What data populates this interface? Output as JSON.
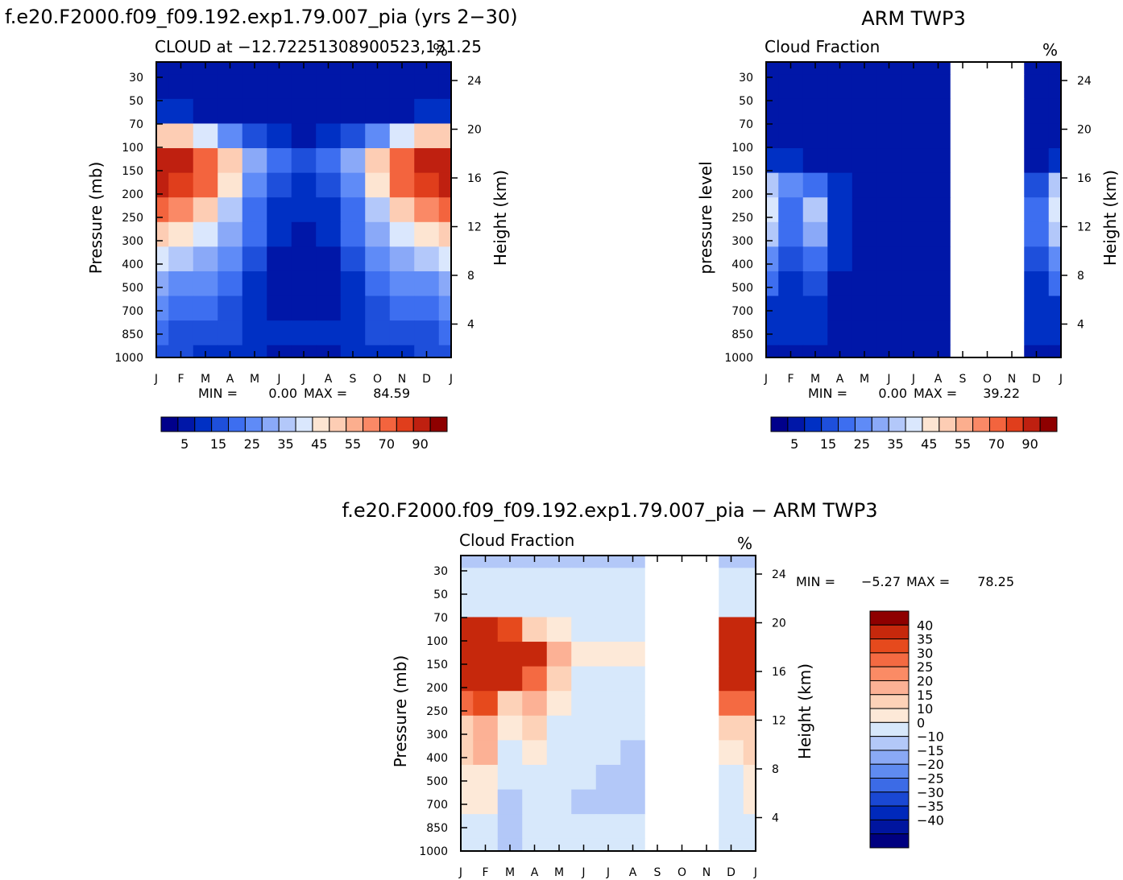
{
  "figure_titles": {
    "model": "f.e20.F2000.f09_f09.192.exp1.79.007_pia (yrs 2−30)",
    "obs": "ARM TWP3",
    "diff": "f.e20.F2000.f09_f09.192.exp1.79.007_pia − ARM TWP3"
  },
  "colors": {
    "cloud_scale": [
      "#00008b",
      "#0017a8",
      "#0030c4",
      "#1e4fdb",
      "#3d6ef0",
      "#5f8bf7",
      "#8aa9f8",
      "#b3c8fa",
      "#dae7fd",
      "#fde5d2",
      "#fdcdb4",
      "#fcae8e",
      "#fa8966",
      "#f3643e",
      "#e03e1c",
      "#bf2010",
      "#8e0000"
    ],
    "diff_scale": [
      "#000080",
      "#00159f",
      "#0029bb",
      "#1a48d3",
      "#3c6be6",
      "#5f8bf0",
      "#8aa9f5",
      "#b3c8f8",
      "#d7e8fb",
      "#fde9d8",
      "#fdd2b8",
      "#fcb195",
      "#fb8b65",
      "#f46a42",
      "#e64a1d",
      "#c6280c",
      "#8e0000"
    ],
    "missing": "#ffffff"
  },
  "chart_data": [
    {
      "id": "model",
      "type": "heatmap",
      "title": "CLOUD at −12.7225130890052​3,131.25",
      "subtitle_left": "CLOUD at −12.72251308900523,131.25",
      "unit": "%",
      "xlabel": "",
      "ylabel": "Pressure (mb)",
      "ylabel_right": "Height (km)",
      "x_ticklabels": [
        "J",
        "F",
        "M",
        "A",
        "M",
        "J",
        "J",
        "A",
        "S",
        "O",
        "N",
        "D",
        "J"
      ],
      "y_ticklabels": [
        "30",
        "50",
        "70",
        "100",
        "150",
        "200",
        "250",
        "300",
        "400",
        "500",
        "700",
        "850",
        "1000"
      ],
      "y_ticks_right": [
        "24",
        "20",
        "16",
        "12",
        "8",
        "4"
      ],
      "min_label": "MIN =",
      "min_value": "0.00",
      "max_label": "MAX =",
      "max_value": "84.59",
      "colorbar_labels": [
        "5",
        "15",
        "25",
        "35",
        "45",
        "55",
        "70",
        "90"
      ],
      "levels": [
        0,
        5,
        10,
        15,
        20,
        25,
        30,
        35,
        40,
        45,
        50,
        55,
        60,
        70,
        80,
        90
      ],
      "pressure_levels": [
        30,
        50,
        70,
        100,
        150,
        200,
        250,
        300,
        400,
        500,
        700,
        850,
        1000
      ],
      "months": [
        "J",
        "F",
        "M",
        "A",
        "M",
        "J",
        "J",
        "A",
        "S",
        "O",
        "N",
        "D",
        "J"
      ],
      "values": [
        [
          0,
          0,
          0,
          0,
          0,
          0,
          0,
          0,
          0,
          0,
          0,
          0,
          0
        ],
        [
          0,
          0,
          0,
          0,
          0,
          0,
          0,
          0,
          0,
          0,
          0,
          0,
          0
        ],
        [
          5,
          5,
          4,
          3,
          2,
          1,
          1,
          1,
          2,
          3,
          4,
          5,
          5
        ],
        [
          45,
          45,
          35,
          20,
          10,
          5,
          3,
          5,
          10,
          20,
          35,
          45,
          45
        ],
        [
          84,
          82,
          65,
          45,
          25,
          15,
          10,
          15,
          25,
          45,
          65,
          82,
          84
        ],
        [
          80,
          78,
          60,
          40,
          22,
          12,
          8,
          12,
          22,
          40,
          60,
          78,
          80
        ],
        [
          60,
          58,
          45,
          30,
          18,
          8,
          5,
          8,
          18,
          30,
          45,
          58,
          60
        ],
        [
          45,
          42,
          35,
          25,
          15,
          5,
          3,
          5,
          15,
          25,
          35,
          42,
          45
        ],
        [
          35,
          32,
          28,
          20,
          10,
          2,
          1,
          2,
          10,
          20,
          28,
          32,
          35
        ],
        [
          25,
          22,
          20,
          15,
          8,
          1,
          0,
          1,
          8,
          15,
          20,
          22,
          25
        ],
        [
          20,
          18,
          15,
          10,
          5,
          1,
          0,
          1,
          5,
          10,
          15,
          18,
          20
        ],
        [
          15,
          14,
          12,
          10,
          8,
          6,
          5,
          6,
          8,
          10,
          12,
          14,
          15
        ],
        [
          10,
          10,
          8,
          6,
          5,
          4,
          3,
          4,
          5,
          6,
          8,
          10,
          10
        ]
      ],
      "missing_months": []
    },
    {
      "id": "obs",
      "type": "heatmap",
      "title": "Cloud Fraction",
      "unit": "%",
      "xlabel": "",
      "ylabel": "pressure level",
      "ylabel_right": "Height (km)",
      "x_ticklabels": [
        "J",
        "F",
        "M",
        "A",
        "M",
        "J",
        "J",
        "A",
        "S",
        "O",
        "N",
        "D",
        "J"
      ],
      "y_ticklabels": [
        "30",
        "50",
        "70",
        "100",
        "150",
        "200",
        "250",
        "300",
        "400",
        "500",
        "700",
        "850",
        "1000"
      ],
      "y_ticks_right": [
        "24",
        "20",
        "16",
        "12",
        "8",
        "4"
      ],
      "min_label": "MIN =",
      "min_value": "0.00",
      "max_label": "MAX =",
      "max_value": "39.22",
      "colorbar_labels": [
        "5",
        "15",
        "25",
        "35",
        "45",
        "55",
        "70",
        "90"
      ],
      "levels": [
        0,
        5,
        10,
        15,
        20,
        25,
        30,
        35,
        40,
        45,
        50,
        55,
        60,
        70,
        80,
        90
      ],
      "pressure_levels": [
        30,
        50,
        70,
        100,
        150,
        200,
        250,
        300,
        400,
        500,
        700,
        850,
        1000
      ],
      "months": [
        "J",
        "F",
        "M",
        "A",
        "M",
        "J",
        "J",
        "A",
        "S",
        "O",
        "N",
        "D",
        "J"
      ],
      "values": [
        [
          0,
          0,
          0,
          0,
          0,
          0,
          0,
          0,
          0,
          0,
          0,
          0,
          0
        ],
        [
          0,
          0,
          0,
          0,
          0,
          0,
          0,
          0,
          0,
          0,
          0,
          0,
          0
        ],
        [
          0,
          0,
          0,
          0,
          0,
          0,
          0,
          0,
          0,
          0,
          0,
          0,
          0
        ],
        [
          0,
          0,
          0,
          0,
          0,
          0,
          0,
          0,
          0,
          0,
          0,
          0,
          0
        ],
        [
          8,
          8,
          4,
          2,
          0,
          0,
          0,
          0,
          0,
          0,
          0,
          2,
          8
        ],
        [
          30,
          20,
          15,
          5,
          0,
          0,
          0,
          0,
          0,
          0,
          0,
          10,
          30
        ],
        [
          39,
          18,
          30,
          8,
          0,
          0,
          0,
          0,
          0,
          0,
          0,
          15,
          39
        ],
        [
          30,
          15,
          25,
          8,
          0,
          0,
          0,
          0,
          0,
          0,
          0,
          15,
          30
        ],
        [
          20,
          12,
          18,
          5,
          0,
          0,
          0,
          0,
          0,
          0,
          0,
          12,
          20
        ],
        [
          15,
          8,
          12,
          4,
          0,
          0,
          0,
          0,
          0,
          0,
          0,
          8,
          15
        ],
        [
          8,
          6,
          8,
          3,
          1,
          0,
          0,
          0,
          0,
          0,
          0,
          5,
          8
        ],
        [
          5,
          5,
          5,
          4,
          2,
          0,
          0,
          0,
          0,
          0,
          0,
          5,
          5
        ],
        [
          3,
          3,
          3,
          2,
          1,
          0,
          0,
          0,
          0,
          0,
          0,
          3,
          3
        ]
      ],
      "missing_months": [
        8,
        9,
        10
      ]
    },
    {
      "id": "diff",
      "type": "heatmap",
      "title": "Cloud Fraction",
      "unit": "%",
      "xlabel": "",
      "ylabel": "Pressure (mb)",
      "ylabel_right": "Height (km)",
      "x_ticklabels": [
        "J",
        "F",
        "M",
        "A",
        "M",
        "J",
        "J",
        "A",
        "S",
        "O",
        "N",
        "D",
        "J"
      ],
      "y_ticklabels": [
        "30",
        "50",
        "70",
        "100",
        "150",
        "200",
        "250",
        "300",
        "400",
        "500",
        "700",
        "850",
        "1000"
      ],
      "y_ticks_right": [
        "24",
        "20",
        "16",
        "12",
        "8",
        "4"
      ],
      "min_label": "MIN =",
      "min_value": "−5.27",
      "max_label": "MAX =",
      "max_value": "78.25",
      "colorbar_labels": [
        "40",
        "35",
        "30",
        "25",
        "20",
        "15",
        "10",
        "0",
        "−10",
        "−15",
        "−20",
        "−25",
        "−30",
        "−35",
        "−40"
      ],
      "levels": [
        -40,
        -35,
        -30,
        -25,
        -20,
        -15,
        -10,
        0,
        10,
        15,
        20,
        25,
        30,
        35,
        40
      ],
      "pressure_levels": [
        30,
        50,
        70,
        100,
        150,
        200,
        250,
        300,
        400,
        500,
        700,
        850,
        1000
      ],
      "months": [
        "J",
        "F",
        "M",
        "A",
        "M",
        "J",
        "J",
        "A",
        "S",
        "O",
        "N",
        "D",
        "J"
      ],
      "values": [
        [
          -2,
          -2,
          -2,
          -2,
          -2,
          -2,
          -2,
          -2,
          -2,
          -2,
          -2,
          -2,
          -2
        ],
        [
          2,
          2,
          2,
          2,
          2,
          2,
          2,
          2,
          2,
          2,
          2,
          2,
          2
        ],
        [
          5,
          5,
          4,
          3,
          2,
          1,
          1,
          1,
          2,
          2,
          2,
          5,
          5
        ],
        [
          45,
          45,
          35,
          18,
          10,
          5,
          3,
          5,
          10,
          5,
          5,
          40,
          45
        ],
        [
          78,
          76,
          58,
          40,
          22,
          12,
          10,
          12,
          20,
          10,
          10,
          70,
          78
        ],
        [
          55,
          58,
          45,
          30,
          18,
          8,
          5,
          8,
          10,
          5,
          5,
          50,
          55
        ],
        [
          30,
          38,
          18,
          22,
          10,
          5,
          3,
          5,
          8,
          5,
          5,
          30,
          30
        ],
        [
          15,
          20,
          10,
          15,
          5,
          2,
          2,
          2,
          5,
          2,
          2,
          15,
          15
        ],
        [
          15,
          20,
          8,
          10,
          5,
          2,
          2,
          -2,
          2,
          2,
          2,
          10,
          15
        ],
        [
          10,
          12,
          5,
          5,
          5,
          2,
          -2,
          -2,
          5,
          2,
          2,
          8,
          10
        ],
        [
          12,
          10,
          -2,
          5,
          3,
          -2,
          -2,
          -2,
          2,
          2,
          2,
          8,
          12
        ],
        [
          3,
          3,
          -3,
          3,
          3,
          5,
          5,
          3,
          3,
          2,
          2,
          3,
          3
        ],
        [
          2,
          2,
          -2,
          2,
          2,
          2,
          2,
          2,
          2,
          2,
          2,
          2,
          2
        ]
      ],
      "missing_months": [
        8,
        9,
        10
      ]
    }
  ]
}
